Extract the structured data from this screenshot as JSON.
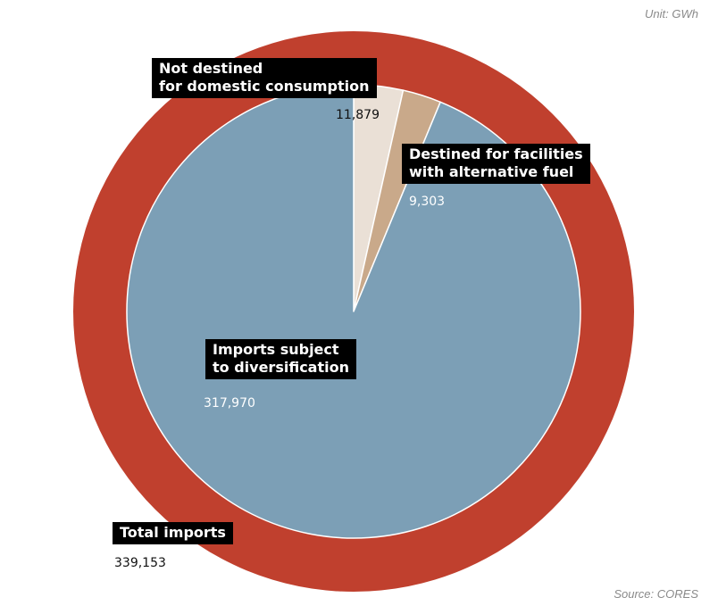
{
  "unit_label": "Unit: GWh",
  "source_label": "Source: CORES",
  "colors": {
    "total_ring": "#C0402E",
    "diversification": "#7C9FB6",
    "alternative_fuel": "#C9A98A",
    "not_destined": "#EAE0D6",
    "label_bg": "#000000"
  },
  "chart_data": {
    "type": "pie",
    "title": "",
    "unit": "GWh",
    "outer": {
      "label": "Total imports",
      "value": 339153,
      "value_text": "339,153"
    },
    "slices": [
      {
        "key": "not_destined",
        "label_lines": [
          "Not destined",
          "for domestic consumption"
        ],
        "value": 11879,
        "value_text": "11,879"
      },
      {
        "key": "alternative_fuel",
        "label_lines": [
          "Destined for facilities",
          "with alternative fuel"
        ],
        "value": 9303,
        "value_text": "9,303"
      },
      {
        "key": "diversification",
        "label_lines": [
          "Imports subject",
          "to diversification"
        ],
        "value": 317970,
        "value_text": "317,970"
      }
    ]
  }
}
